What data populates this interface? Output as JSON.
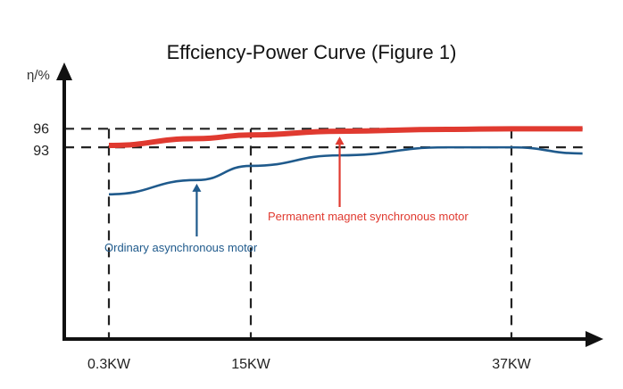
{
  "chart_data": {
    "type": "line",
    "title": "Effciency-Power Curve (Figure 1)",
    "ylabel": "η/%",
    "xlabel": "",
    "x_ticks": [
      {
        "value": 0.3,
        "label": "0.3KW"
      },
      {
        "value": 15,
        "label": "15KW"
      },
      {
        "value": 37,
        "label": "37KW"
      }
    ],
    "y_ticks": [
      {
        "value": 93,
        "label": "93"
      },
      {
        "value": 96,
        "label": "96"
      }
    ],
    "ylim": [
      62,
      106
    ],
    "xlim": [
      0,
      43
    ],
    "grid": false,
    "reference_lines": "dashed at x ticks and y ticks",
    "series": [
      {
        "name": "Permanent magnet synchronous motor",
        "color": "#e03a30",
        "x": [
          0.3,
          9.4,
          15,
          22.5,
          31.5,
          37,
          43
        ],
        "values": [
          93.3,
          94.4,
          95.0,
          95.6,
          95.9,
          96.0,
          96.0
        ]
      },
      {
        "name": "Ordinary asynchronous motor",
        "color": "#1f5a8c",
        "x": [
          0.3,
          9.4,
          15,
          22.5,
          31.5,
          37,
          43
        ],
        "values": [
          85.4,
          87.7,
          90.0,
          91.7,
          93.0,
          93.0,
          92.0
        ]
      }
    ],
    "annotations": [
      {
        "text": "Permanent magnet synchronous motor",
        "points_to_x": 22.5
      },
      {
        "text": "Ordinary asynchronous motor",
        "points_to_x": 9.4
      }
    ]
  }
}
